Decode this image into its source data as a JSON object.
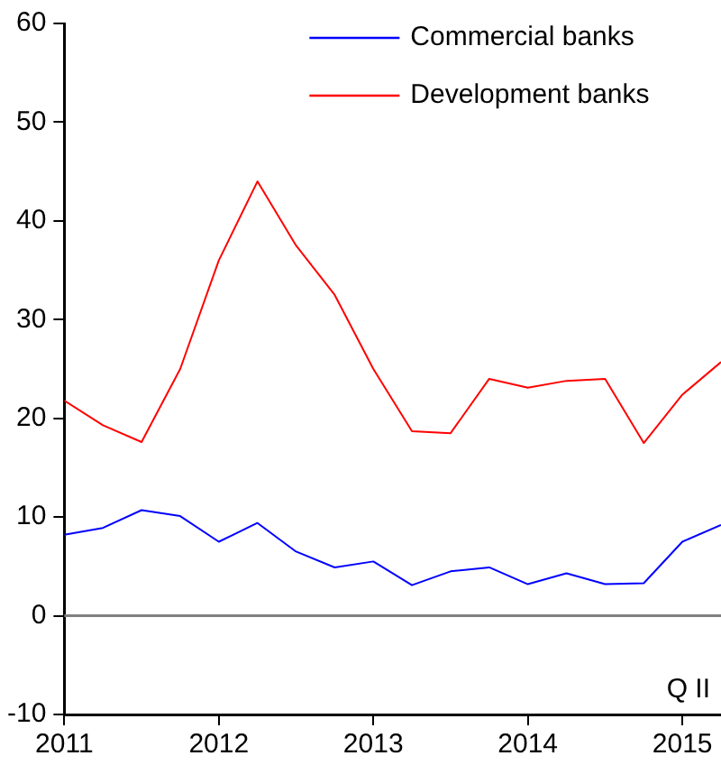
{
  "chart_data": {
    "type": "line",
    "x": [
      2011,
      2011.25,
      2011.5,
      2011.75,
      2012,
      2012.25,
      2012.5,
      2012.75,
      2013,
      2013.25,
      2013.5,
      2013.75,
      2014,
      2014.25,
      2014.5,
      2014.75,
      2015,
      2015.25
    ],
    "series": [
      {
        "name": "Commercial banks",
        "color": "#0000ff",
        "values": [
          8.2,
          8.9,
          10.7,
          10.1,
          7.5,
          9.4,
          6.5,
          4.9,
          5.5,
          3.1,
          4.5,
          4.9,
          3.2,
          4.3,
          3.2,
          3.3,
          7.5,
          9.2
        ]
      },
      {
        "name": "Development banks",
        "color": "#ff0000",
        "values": [
          21.8,
          19.3,
          17.6,
          25,
          36,
          44,
          37.5,
          32.5,
          25,
          18.7,
          18.5,
          24,
          23.1,
          23.8,
          24,
          17.5,
          22.4,
          25.7
        ]
      }
    ],
    "xlim": [
      2011,
      2015.25
    ],
    "xticks": [
      2011,
      2012,
      2013,
      2014,
      2015
    ],
    "ylim": [
      -10,
      60
    ],
    "yticks": [
      -10,
      0,
      10,
      20,
      30,
      40,
      50,
      60
    ],
    "ref_lines": [
      {
        "axis": "y",
        "value": 0,
        "color": "#808080"
      }
    ],
    "annotations": [
      "Q II"
    ],
    "grid": false,
    "legend": "top right",
    "marker": "none",
    "line_style": "solid"
  }
}
